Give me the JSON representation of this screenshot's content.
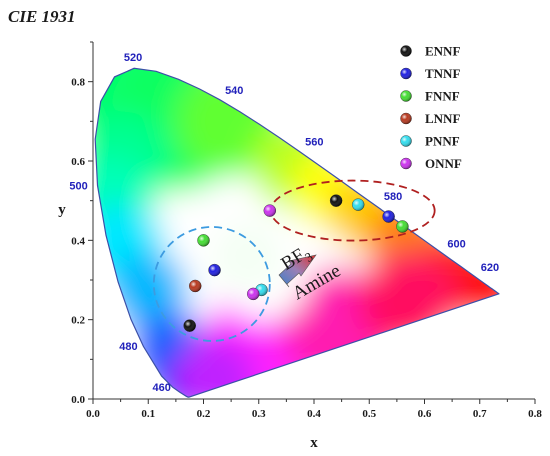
{
  "chart_data": {
    "type": "scatter",
    "title": "CIE 1931",
    "xlabel": "x",
    "ylabel": "y",
    "xlim": [
      0.0,
      0.8
    ],
    "ylim": [
      0.0,
      0.9
    ],
    "xticks": [
      "0.0",
      "0.1",
      "0.2",
      "0.3",
      "0.4",
      "0.5",
      "0.6",
      "0.7",
      "0.8"
    ],
    "yticks": [
      "0.0",
      "0.2",
      "0.4",
      "0.6",
      "0.8"
    ],
    "wavelength_labels": [
      {
        "text": "460",
        "x": 0.144,
        "y": 0.03
      },
      {
        "text": "480",
        "x": 0.091,
        "y": 0.133
      },
      {
        "text": "500",
        "x": 0.008,
        "y": 0.538
      },
      {
        "text": "520",
        "x": 0.074,
        "y": 0.834
      },
      {
        "text": "540",
        "x": 0.23,
        "y": 0.754
      },
      {
        "text": "560",
        "x": 0.373,
        "y": 0.624
      },
      {
        "text": "580",
        "x": 0.512,
        "y": 0.487
      },
      {
        "text": "600",
        "x": 0.627,
        "y": 0.372
      },
      {
        "text": "620",
        "x": 0.691,
        "y": 0.308
      }
    ],
    "series": [
      {
        "name": "ENNF",
        "color": "#111111",
        "points": [
          [
            0.44,
            0.5
          ],
          [
            0.175,
            0.185
          ]
        ]
      },
      {
        "name": "TNNF",
        "color": "#2020e0",
        "points": [
          [
            0.535,
            0.46
          ],
          [
            0.22,
            0.325
          ]
        ]
      },
      {
        "name": "FNNF",
        "color": "#44dd33",
        "points": [
          [
            0.56,
            0.435
          ],
          [
            0.2,
            0.4
          ]
        ]
      },
      {
        "name": "LNNF",
        "color": "#b83a20",
        "points": [
          [
            0.185,
            0.285
          ]
        ]
      },
      {
        "name": "PNNF",
        "color": "#33ddee",
        "points": [
          [
            0.48,
            0.49
          ],
          [
            0.305,
            0.275
          ]
        ]
      },
      {
        "name": "ONNF",
        "color": "#cc33ee",
        "points": [
          [
            0.32,
            0.475
          ],
          [
            0.29,
            0.265
          ]
        ]
      }
    ],
    "annotations": {
      "upper": "BF",
      "subscript": "3",
      "lower": "Amine"
    },
    "legend_position": "top-right",
    "grid": false
  }
}
